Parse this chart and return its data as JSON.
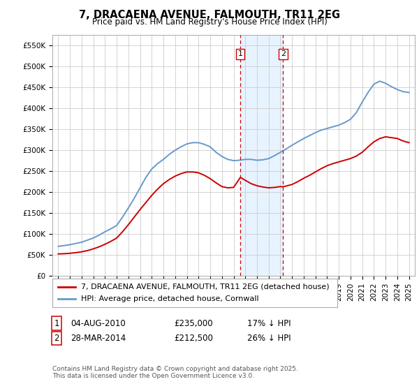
{
  "title": "7, DRACAENA AVENUE, FALMOUTH, TR11 2EG",
  "subtitle": "Price paid vs. HM Land Registry's House Price Index (HPI)",
  "ylabel_ticks": [
    "£0",
    "£50K",
    "£100K",
    "£150K",
    "£200K",
    "£250K",
    "£300K",
    "£350K",
    "£400K",
    "£450K",
    "£500K",
    "£550K"
  ],
  "ytick_values": [
    0,
    50000,
    100000,
    150000,
    200000,
    250000,
    300000,
    350000,
    400000,
    450000,
    500000,
    550000
  ],
  "ylim": [
    0,
    575000
  ],
  "xlim_min": 1994.5,
  "xlim_max": 2025.5,
  "marker1_x": 2010.58,
  "marker2_x": 2014.23,
  "marker1_label": "1",
  "marker2_label": "2",
  "legend_line1": "7, DRACAENA AVENUE, FALMOUTH, TR11 2EG (detached house)",
  "legend_line2": "HPI: Average price, detached house, Cornwall",
  "table_row1": [
    "1",
    "04-AUG-2010",
    "£235,000",
    "17% ↓ HPI"
  ],
  "table_row2": [
    "2",
    "28-MAR-2014",
    "£212,500",
    "26% ↓ HPI"
  ],
  "footnote": "Contains HM Land Registry data © Crown copyright and database right 2025.\nThis data is licensed under the Open Government Licence v3.0.",
  "line_red_color": "#cc0000",
  "line_blue_color": "#6699cc",
  "marker_line_color": "#cc0000",
  "background_color": "#ffffff",
  "grid_color": "#cccccc",
  "shade_color": "#ddeeff",
  "title_fontsize": 10.5,
  "subtitle_fontsize": 8.5,
  "tick_fontsize": 7.5,
  "legend_fontsize": 8.0,
  "table_fontsize": 8.5,
  "footnote_fontsize": 6.5,
  "hpi_years": [
    1995,
    1995.5,
    1996,
    1996.5,
    1997,
    1997.5,
    1998,
    1998.5,
    1999,
    1999.5,
    2000,
    2000.5,
    2001,
    2001.5,
    2002,
    2002.5,
    2003,
    2003.5,
    2004,
    2004.5,
    2005,
    2005.5,
    2006,
    2006.5,
    2007,
    2007.5,
    2008,
    2008.5,
    2009,
    2009.5,
    2010,
    2010.5,
    2011,
    2011.5,
    2012,
    2012.5,
    2013,
    2013.5,
    2014,
    2014.5,
    2015,
    2015.5,
    2016,
    2016.5,
    2017,
    2017.5,
    2018,
    2018.5,
    2019,
    2019.5,
    2020,
    2020.5,
    2021,
    2021.5,
    2022,
    2022.5,
    2023,
    2023.5,
    2024,
    2024.5,
    2025
  ],
  "hpi_vals": [
    70000,
    72000,
    74000,
    77000,
    80000,
    85000,
    90000,
    97000,
    105000,
    112000,
    120000,
    140000,
    162000,
    185000,
    210000,
    235000,
    255000,
    268000,
    278000,
    290000,
    300000,
    308000,
    315000,
    318000,
    318000,
    314000,
    308000,
    295000,
    285000,
    278000,
    275000,
    276000,
    278000,
    278000,
    276000,
    277000,
    280000,
    287000,
    295000,
    303000,
    312000,
    320000,
    328000,
    335000,
    342000,
    348000,
    352000,
    356000,
    360000,
    366000,
    374000,
    390000,
    415000,
    438000,
    458000,
    465000,
    460000,
    452000,
    445000,
    440000,
    438000
  ],
  "red_years": [
    1995,
    1995.5,
    1996,
    1996.5,
    1997,
    1997.5,
    1998,
    1998.5,
    1999,
    1999.5,
    2000,
    2000.5,
    2001,
    2001.5,
    2002,
    2002.5,
    2003,
    2003.5,
    2004,
    2004.5,
    2005,
    2005.5,
    2006,
    2006.5,
    2007,
    2007.5,
    2008,
    2008.5,
    2009,
    2009.5,
    2010,
    2010.58,
    2011,
    2011.5,
    2012,
    2012.5,
    2013,
    2013.5,
    2014,
    2014.23,
    2015,
    2015.5,
    2016,
    2016.5,
    2017,
    2017.5,
    2018,
    2018.5,
    2019,
    2019.5,
    2020,
    2020.5,
    2021,
    2021.5,
    2022,
    2022.5,
    2023,
    2023.5,
    2024,
    2024.5,
    2025
  ],
  "red_vals": [
    52000,
    52500,
    53500,
    55000,
    57000,
    60000,
    64000,
    69000,
    75000,
    82000,
    90000,
    105000,
    122000,
    140000,
    158000,
    175000,
    192000,
    207000,
    220000,
    230000,
    238000,
    244000,
    248000,
    248000,
    246000,
    240000,
    232000,
    222000,
    213000,
    210000,
    211000,
    235000,
    228000,
    220000,
    215000,
    212000,
    210000,
    211000,
    213000,
    212500,
    218000,
    225000,
    233000,
    240000,
    248000,
    256000,
    263000,
    268000,
    272000,
    276000,
    280000,
    286000,
    295000,
    308000,
    320000,
    328000,
    332000,
    330000,
    328000,
    322000,
    318000
  ]
}
